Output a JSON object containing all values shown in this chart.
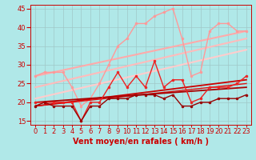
{
  "background_color": "#b0e8e8",
  "grid_color": "#a0c8c8",
  "xlabel": "Vent moyen/en rafales ( km/h )",
  "xlabel_color": "#cc0000",
  "xlabel_fontsize": 7,
  "tick_color": "#cc0000",
  "tick_fontsize": 6,
  "xlim": [
    -0.5,
    23.5
  ],
  "ylim": [
    14,
    46
  ],
  "yticks": [
    15,
    20,
    25,
    30,
    35,
    40,
    45
  ],
  "xticks": [
    0,
    1,
    2,
    3,
    4,
    5,
    6,
    7,
    8,
    9,
    10,
    11,
    12,
    13,
    14,
    15,
    16,
    17,
    18,
    19,
    20,
    21,
    22,
    23
  ],
  "lines": [
    {
      "x": [
        0,
        23
      ],
      "y": [
        27,
        39
      ],
      "color": "#ffaaaa",
      "lw": 1.5,
      "marker": null,
      "ms": 0
    },
    {
      "x": [
        0,
        23
      ],
      "y": [
        24,
        37
      ],
      "color": "#ffbbbb",
      "lw": 1.5,
      "marker": null,
      "ms": 0
    },
    {
      "x": [
        0,
        23
      ],
      "y": [
        21,
        34
      ],
      "color": "#ffcccc",
      "lw": 1.5,
      "marker": null,
      "ms": 0
    },
    {
      "x": [
        0,
        1,
        2,
        3,
        4,
        5,
        6,
        7,
        8,
        9,
        10,
        11,
        12,
        13,
        14,
        15,
        16,
        17,
        18,
        19,
        20,
        21,
        22,
        23
      ],
      "y": [
        27,
        28,
        28,
        28,
        24,
        19,
        21,
        25,
        30,
        35,
        37,
        41,
        41,
        43,
        44,
        45,
        37,
        27,
        28,
        39,
        41,
        41,
        39,
        39
      ],
      "color": "#ff9999",
      "lw": 1.0,
      "marker": "o",
      "ms": 2.0
    },
    {
      "x": [
        0,
        23
      ],
      "y": [
        19,
        26
      ],
      "color": "#cc0000",
      "lw": 1.3,
      "marker": null,
      "ms": 0
    },
    {
      "x": [
        0,
        23
      ],
      "y": [
        19,
        25
      ],
      "color": "#dd1111",
      "lw": 1.0,
      "marker": null,
      "ms": 0
    },
    {
      "x": [
        0,
        23
      ],
      "y": [
        20,
        24
      ],
      "color": "#aa0000",
      "lw": 1.3,
      "marker": null,
      "ms": 0
    },
    {
      "x": [
        0,
        1,
        2,
        3,
        4,
        5,
        6,
        7,
        8,
        9,
        10,
        11,
        12,
        13,
        14,
        15,
        16,
        17,
        18,
        19,
        20,
        21,
        22,
        23
      ],
      "y": [
        20,
        20,
        20,
        20,
        20,
        15,
        20,
        20,
        24,
        28,
        24,
        27,
        24,
        31,
        24,
        26,
        26,
        20,
        21,
        24,
        24,
        24,
        25,
        27
      ],
      "color": "#ee2222",
      "lw": 1.0,
      "marker": "o",
      "ms": 2.0
    },
    {
      "x": [
        0,
        1,
        2,
        3,
        4,
        5,
        6,
        7,
        8,
        9,
        10,
        11,
        12,
        13,
        14,
        15,
        16,
        17,
        18,
        19,
        20,
        21,
        22,
        23
      ],
      "y": [
        19,
        20,
        19,
        19,
        19,
        15,
        19,
        19,
        21,
        21,
        21,
        22,
        22,
        22,
        21,
        22,
        19,
        19,
        20,
        20,
        21,
        21,
        21,
        22
      ],
      "color": "#990000",
      "lw": 1.0,
      "marker": "o",
      "ms": 2.0
    }
  ]
}
